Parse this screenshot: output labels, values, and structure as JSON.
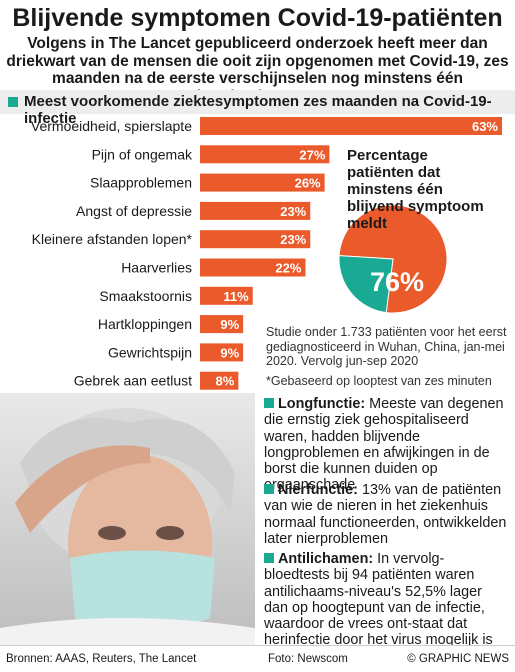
{
  "title": "Blijvende symptomen Covid-19-patiënten",
  "subtitle": "Volgens in The Lancet gepubliceerd onderzoek heeft meer dan driekwart van de mensen die ooit zijn opgenomen met Covid-19, zes maanden na de eerste verschijnselen nog minstens één aanhoudend symptoom",
  "section_title": "Meest voorkomende ziektesymptomen zes maanden na Covid-19-infectie",
  "chart_data": [
    {
      "type": "bar",
      "orientation": "horizontal",
      "title": "Meest voorkomende ziektesymptomen zes maanden na Covid-19-infectie",
      "categories": [
        "Vermoeidheid, spierslapte",
        "Pijn of ongemak",
        "Slaapproblemen",
        "Angst of depressie",
        "Kleinere afstanden lopen*",
        "Haarverlies",
        "Smaakstoornis",
        "Hartkloppingen",
        "Gewrichtspijn",
        "Gebrek aan eetlust"
      ],
      "values": [
        63,
        27,
        26,
        23,
        23,
        22,
        11,
        9,
        9,
        8
      ],
      "value_labels": [
        "63%",
        "27%",
        "26%",
        "23%",
        "23%",
        "22%",
        "11%",
        "9%",
        "9%",
        "8%"
      ],
      "unit": "%",
      "color": "#ea5a2b"
    },
    {
      "type": "pie",
      "title": "Percentage patiënten dat minstens één blijvend symptoom meldt",
      "values": [
        76,
        24
      ],
      "label": "76%",
      "colors": [
        "#ea5a2b",
        "#1aa992"
      ]
    }
  ],
  "study_note": "Studie onder 1.733 patiënten voor het eerst gediagnosticeerd in Wuhan, China, jan-mei 2020. Vervolg jun-sep 2020",
  "footnote": "*Gebaseerd op looptest van zes minuten",
  "info": [
    {
      "head": "Longfunctie:",
      "text": "Meeste van degenen die ernstig ziek gehospitaliseerd waren, hadden blijvende longproblemen en afwijkingen in de borst die kunnen duiden op orgaanschade"
    },
    {
      "head": "Nierfunctie:",
      "text": "13% van de patiënten van wie de nieren in het ziekenhuis normaal functioneerden, ontwikkelden later nierproblemen"
    },
    {
      "head": "Antilichamen:",
      "text": "In vervolg-bloedtests bij 94 patiënten waren antilichaams-niveau's 52,5% lager dan op hoogtepunt van de infectie, waardoor de vrees ont-staat dat herinfectie door het virus mogelijk is"
    }
  ],
  "footer": {
    "sources": "Bronnen: AAAS, Reuters, The Lancet",
    "photo": "Foto: Newscom",
    "credit": "© GRAPHIC NEWS"
  },
  "colors": {
    "accent": "#ea5a2b",
    "teal": "#1aa992"
  }
}
